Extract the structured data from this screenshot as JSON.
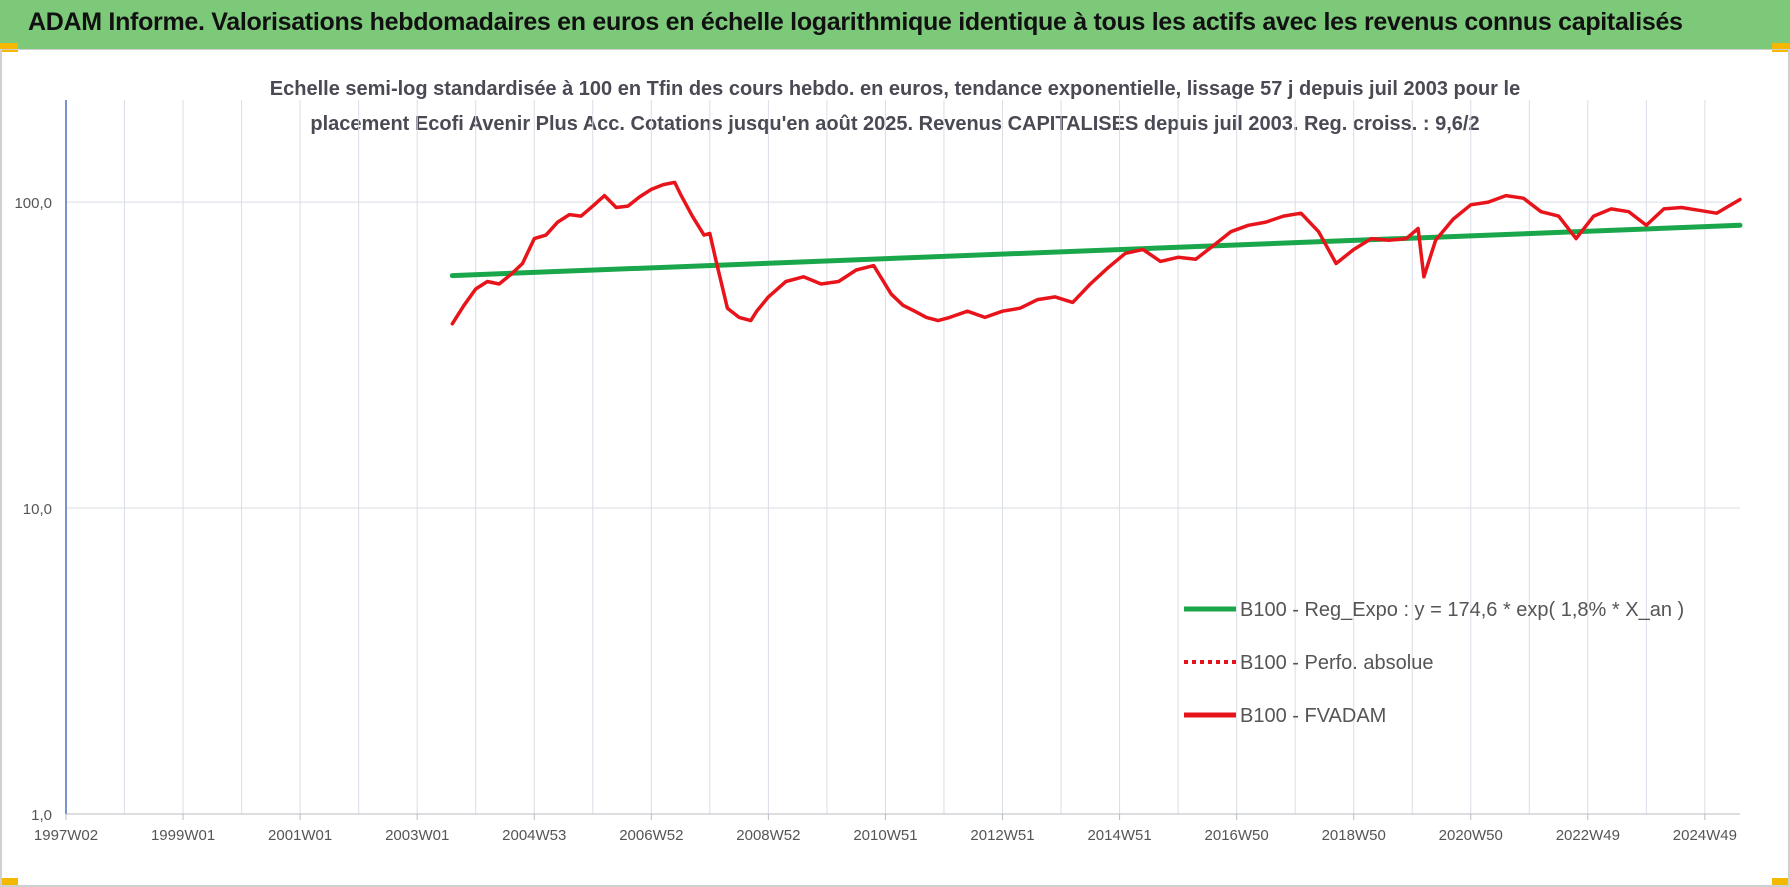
{
  "header": {
    "title": "ADAM Informe. Valorisations hebdomadaires en euros en échelle logarithmique identique à tous les actifs avec les revenus connus capitalisés"
  },
  "colors": {
    "banner": "#7dc97a",
    "corner": "#f5b800",
    "regression": "#1aa64a",
    "fvadam": "#e8141b",
    "perfo": "#e8141b",
    "grid": "#d9dde6",
    "axis": "#4a72b8"
  },
  "chart_data": {
    "type": "line",
    "title_line1": "Echelle semi-log standardisée à 100 en Tfin des cours hebdo. en euros, tendance exponentielle, lissage 57 j depuis juil 2003 pour le",
    "title_line2": "placement Ecofi Avenir Plus Acc. Cotations jusqu'en août 2025. Revenus CAPITALISES depuis juil 2003. Reg. croiss. : 9,6/2",
    "xlabel": "",
    "ylabel": "",
    "yscale": "log",
    "ylim": [
      1,
      200
    ],
    "y_ticks": [
      1,
      10,
      100
    ],
    "y_tick_labels": [
      "1,0",
      "10,0",
      "100,0"
    ],
    "xlim": [
      1997.0,
      2025.6
    ],
    "x_ticks": [
      1997,
      1999,
      2001,
      2003,
      2005,
      2007,
      2009,
      2011,
      2013,
      2015,
      2017,
      2019,
      2021,
      2023,
      2025
    ],
    "x_tick_labels": [
      "1997W02",
      "1999W01",
      "2001W01",
      "2003W01",
      "2004W53",
      "2006W52",
      "2008W52",
      "2010W51",
      "2012W51",
      "2014W51",
      "2016W50",
      "2018W50",
      "2020W50",
      "2022W49",
      "2024W49"
    ],
    "grid": "vertical",
    "legend_position": "bottom-right",
    "series": [
      {
        "name": "B100 - Reg_Expo : y = 174,6 * exp( 1,8% *  X_an )",
        "color": "#1aa64a",
        "style": "solid",
        "x": [
          2003.6,
          2025.6
        ],
        "y": [
          57.5,
          84.0
        ]
      },
      {
        "name": "B100 - Perfo. absolue",
        "color": "#e8141b",
        "style": "dotted",
        "x": [],
        "y": []
      },
      {
        "name": "B100 - FVADAM",
        "color": "#e8141b",
        "style": "solid",
        "x": [
          2003.6,
          2003.8,
          2004.0,
          2004.2,
          2004.4,
          2004.6,
          2004.8,
          2005.0,
          2005.2,
          2005.4,
          2005.6,
          2005.8,
          2006.0,
          2006.2,
          2006.4,
          2006.6,
          2006.8,
          2007.0,
          2007.2,
          2007.4,
          2007.5,
          2007.7,
          2007.9,
          2008.0,
          2008.1,
          2008.3,
          2008.5,
          2008.7,
          2008.8,
          2009.0,
          2009.3,
          2009.6,
          2009.9,
          2010.2,
          2010.5,
          2010.8,
          2011.1,
          2011.3,
          2011.5,
          2011.7,
          2011.9,
          2012.1,
          2012.4,
          2012.7,
          2013.0,
          2013.3,
          2013.6,
          2013.9,
          2014.2,
          2014.5,
          2014.8,
          2015.1,
          2015.4,
          2015.7,
          2016.0,
          2016.3,
          2016.6,
          2016.9,
          2017.2,
          2017.5,
          2017.8,
          2018.1,
          2018.4,
          2018.7,
          2019.0,
          2019.3,
          2019.6,
          2019.9,
          2020.1,
          2020.2,
          2020.4,
          2020.7,
          2021.0,
          2021.3,
          2021.6,
          2021.9,
          2022.2,
          2022.5,
          2022.8,
          2023.1,
          2023.4,
          2023.7,
          2024.0,
          2024.3,
          2024.6,
          2024.9,
          2025.2,
          2025.6
        ],
        "y": [
          40.0,
          46.0,
          52.0,
          55.0,
          54.0,
          58.0,
          63.0,
          76.0,
          78.0,
          86.0,
          91.0,
          90.0,
          97.0,
          105.0,
          96.0,
          97.0,
          104.0,
          110.0,
          114.0,
          116.0,
          106.0,
          90.0,
          78.0,
          79.0,
          65.0,
          45.0,
          42.0,
          41.0,
          44.0,
          49.0,
          55.0,
          57.0,
          54.0,
          55.0,
          60.0,
          62.0,
          50.0,
          46.0,
          44.0,
          42.0,
          41.0,
          42.0,
          44.0,
          42.0,
          44.0,
          45.0,
          48.0,
          49.0,
          47.0,
          54.0,
          61.0,
          68.0,
          70.0,
          64.0,
          66.0,
          65.0,
          72.0,
          80.0,
          84.0,
          86.0,
          90.0,
          92.0,
          80.0,
          63.0,
          70.0,
          76.0,
          75.0,
          76.0,
          82.0,
          57.0,
          75.0,
          88.0,
          98.0,
          100.0,
          105.0,
          103.0,
          93.0,
          90.0,
          76.0,
          90.0,
          95.0,
          93.0,
          84.0,
          95.0,
          96.0,
          94.0,
          92.0,
          102.0
        ]
      }
    ]
  }
}
